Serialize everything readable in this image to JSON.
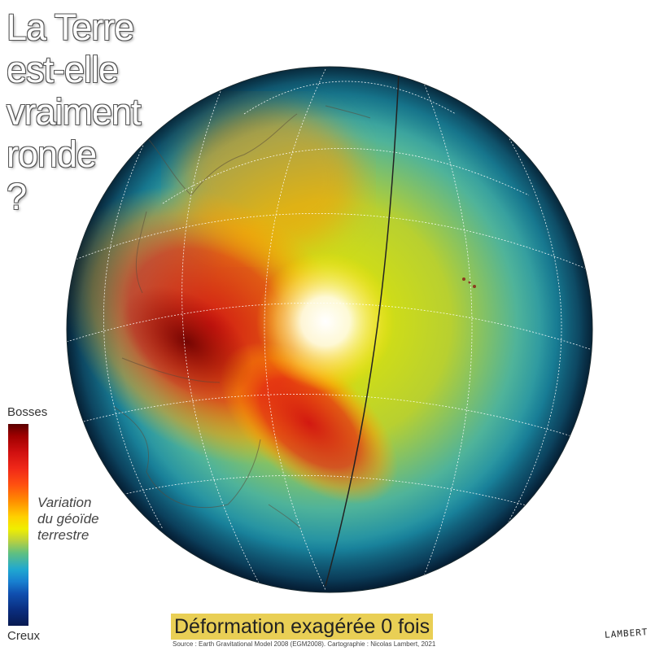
{
  "title_lines": [
    "La Terre",
    "est-elle",
    "vraiment",
    "ronde",
    "?"
  ],
  "legend": {
    "top_label": "Bosses",
    "bottom_label": "Creux",
    "description_lines": [
      "Variation",
      "du géoïde",
      "terrestre"
    ],
    "colors": [
      "#5a0000",
      "#d01010",
      "#ff8c00",
      "#f0ee00",
      "#60c080",
      "#20a8d0",
      "#0a2e80"
    ]
  },
  "subtitle": "Déformation exagérée 0 fois",
  "source": "Source : Earth Gravitational Model 2008 (EGM2008). Cartographie : Nicolas Lambert, 2021",
  "signature": "LAMBERT",
  "map": {
    "projection": "orthographic",
    "variable": "geoid height",
    "graticule": true,
    "highlight_color": "#e9cf55"
  }
}
